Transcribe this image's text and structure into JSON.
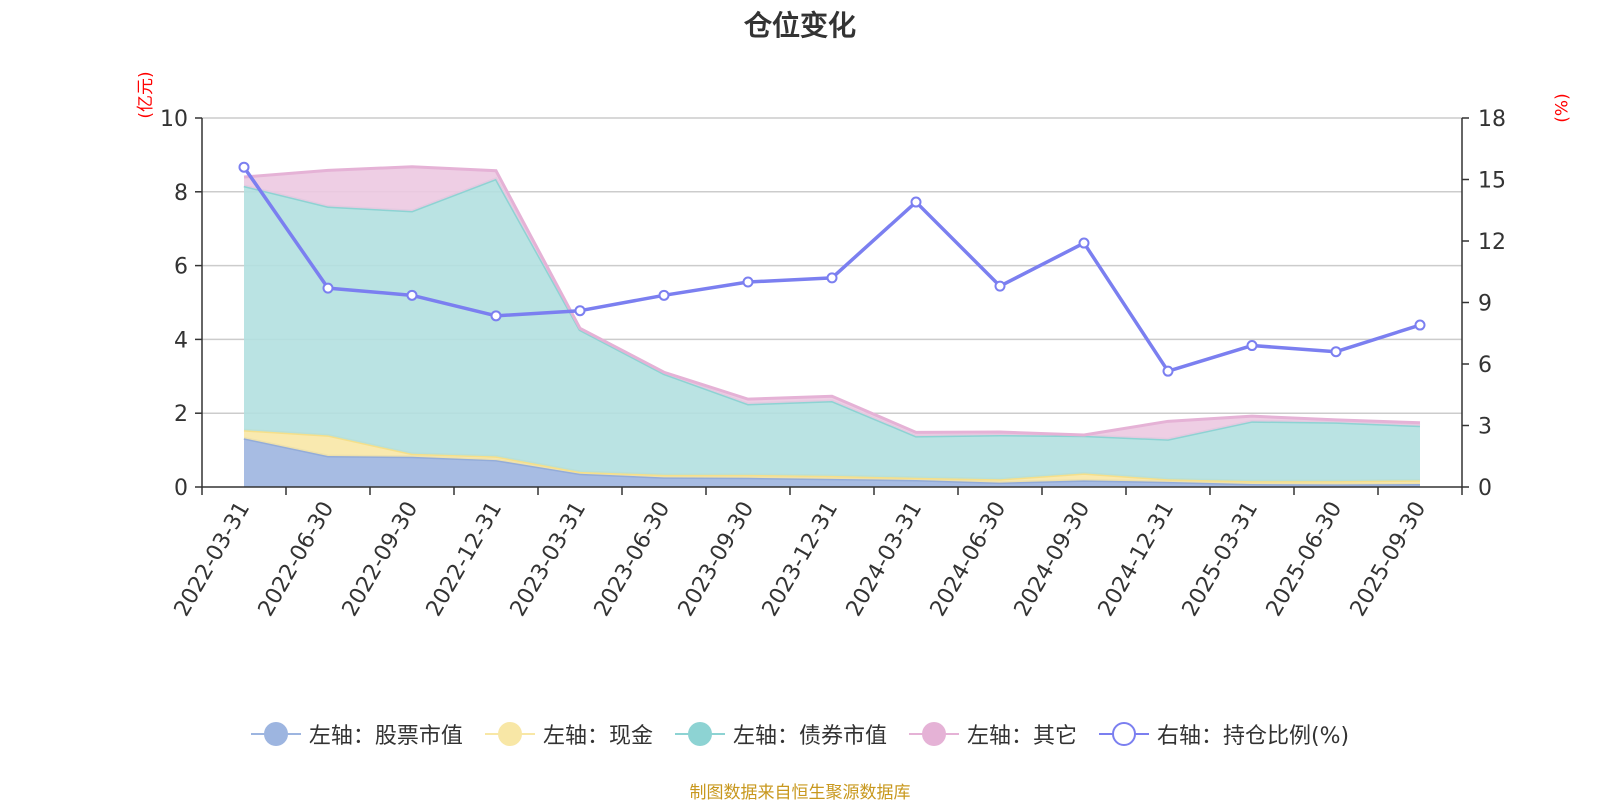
{
  "chart_data": {
    "type": "area+line",
    "title": "仓位变化",
    "left_axis_unit": "(亿元)",
    "right_axis_unit": "(%)",
    "left_ylim": [
      0,
      10
    ],
    "left_ticks": [
      "0",
      "2",
      "4",
      "6",
      "8",
      "10"
    ],
    "right_ylim": [
      0,
      18
    ],
    "right_ticks": [
      "0",
      "3",
      "6",
      "9",
      "12",
      "15",
      "18"
    ],
    "categories": [
      "2022-03-31",
      "2022-06-30",
      "2022-09-30",
      "2022-12-31",
      "2023-03-31",
      "2023-06-30",
      "2023-09-30",
      "2023-12-31",
      "2024-03-31",
      "2024-06-30",
      "2024-09-30",
      "2024-12-31",
      "2025-03-31",
      "2025-06-30",
      "2025-09-30"
    ],
    "stacked_series": [
      {
        "name": "左轴：股票市值",
        "axis": "left",
        "color": "#9db5e0",
        "stroke": "#93acd9",
        "values": [
          1.32,
          0.84,
          0.82,
          0.73,
          0.36,
          0.26,
          0.25,
          0.22,
          0.19,
          0.12,
          0.18,
          0.14,
          0.08,
          0.07,
          0.08
        ]
      },
      {
        "name": "左轴：现金",
        "axis": "left",
        "color": "#f8e7a6",
        "stroke": "#f5df8a",
        "values": [
          0.22,
          0.56,
          0.08,
          0.1,
          0.05,
          0.07,
          0.08,
          0.08,
          0.06,
          0.09,
          0.19,
          0.07,
          0.08,
          0.09,
          0.1
        ]
      },
      {
        "name": "左轴：债券市值",
        "axis": "left",
        "color": "#b3e0e0",
        "stroke": "#8dd3d3",
        "values": [
          6.62,
          6.2,
          6.58,
          7.52,
          3.85,
          2.74,
          1.92,
          2.03,
          1.13,
          1.2,
          1.02,
          1.08,
          1.62,
          1.59,
          1.48
        ]
      },
      {
        "name": "左轴：其它",
        "axis": "left",
        "color": "#ecc9e1",
        "stroke": "#e5b2d6",
        "values": [
          0.24,
          0.98,
          1.2,
          0.22,
          0.04,
          0.04,
          0.13,
          0.13,
          0.1,
          0.08,
          0.02,
          0.49,
          0.14,
          0.07,
          0.08
        ]
      }
    ],
    "line_series": {
      "name": "右轴：持仓比例(%)",
      "axis": "right",
      "color": "#7b7ff0",
      "values": [
        15.6,
        9.7,
        9.35,
        8.35,
        8.6,
        9.35,
        10.0,
        10.2,
        13.9,
        9.8,
        11.9,
        5.65,
        6.9,
        6.6,
        7.9
      ]
    }
  },
  "source": "制图数据来自恒生聚源数据库"
}
